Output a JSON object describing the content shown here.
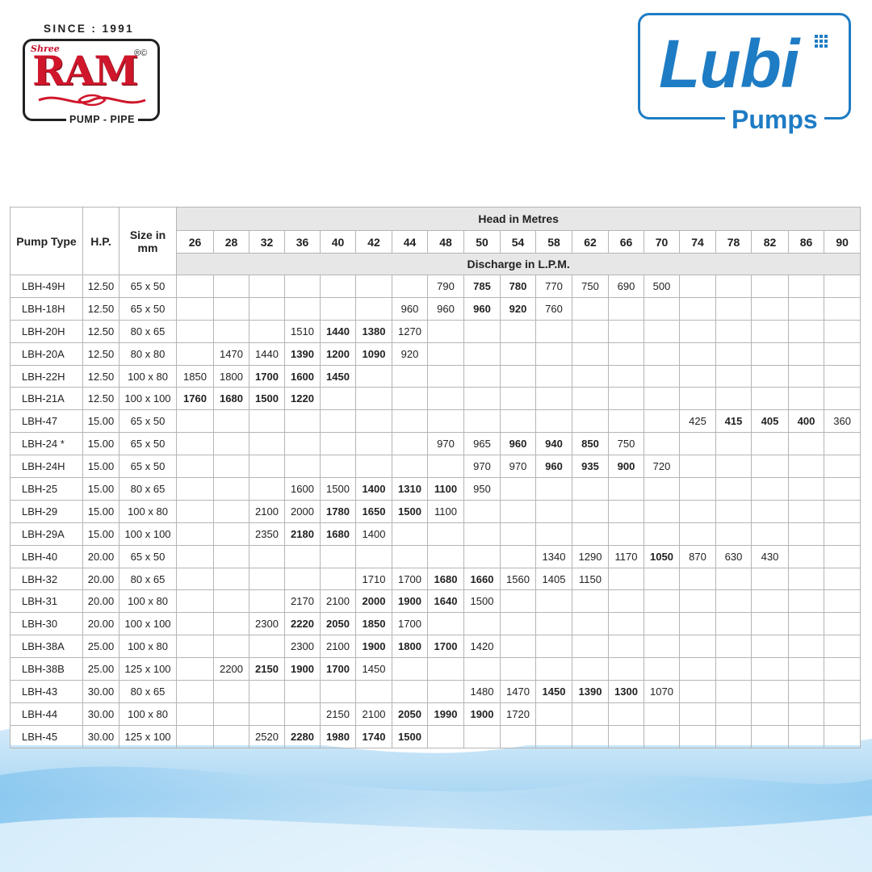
{
  "brand_left": {
    "since": "SINCE : 1991",
    "prefix": "Shree",
    "name": "RAM",
    "reg_mark": "®©",
    "tagline": "PUMP - PIPE"
  },
  "brand_right": {
    "name": "Lubi",
    "subtitle": "Pumps",
    "accent_color": "#1e7cc4"
  },
  "table": {
    "col_pump_type": "Pump Type",
    "col_hp": "H.P.",
    "col_size": "Size in mm",
    "head_group": "Head in Metres",
    "discharge_group": "Discharge in L.P.M.",
    "heads": [
      "26",
      "28",
      "32",
      "36",
      "40",
      "42",
      "44",
      "48",
      "50",
      "54",
      "58",
      "62",
      "66",
      "70",
      "74",
      "78",
      "82",
      "86",
      "90"
    ],
    "rows": [
      {
        "type": "LBH-49H",
        "hp": "12.50",
        "size": "65 x 50",
        "values": [
          "",
          "",
          "",
          "",
          "",
          "",
          "",
          "790",
          "785",
          "780",
          "770",
          "750",
          "690",
          "500",
          "",
          "",
          "",
          "",
          ""
        ],
        "bold": [
          8,
          9
        ]
      },
      {
        "type": "LBH-18H",
        "hp": "12.50",
        "size": "65 x 50",
        "values": [
          "",
          "",
          "",
          "",
          "",
          "",
          "960",
          "960",
          "960",
          "920",
          "760",
          "",
          "",
          "",
          "",
          "",
          "",
          "",
          ""
        ],
        "bold": [
          8,
          9
        ]
      },
      {
        "type": "LBH-20H",
        "hp": "12.50",
        "size": "80 x 65",
        "values": [
          "",
          "",
          "",
          "1510",
          "1440",
          "1380",
          "1270",
          "",
          "",
          "",
          "",
          "",
          "",
          "",
          "",
          "",
          "",
          "",
          ""
        ],
        "bold": [
          4,
          5
        ]
      },
      {
        "type": "LBH-20A",
        "hp": "12.50",
        "size": "80 x 80",
        "values": [
          "",
          "1470",
          "1440",
          "1390",
          "1200",
          "1090",
          "920",
          "",
          "",
          "",
          "",
          "",
          "",
          "",
          "",
          "",
          "",
          "",
          ""
        ],
        "bold": [
          3,
          4,
          5
        ]
      },
      {
        "type": "LBH-22H",
        "hp": "12.50",
        "size": "100 x 80",
        "values": [
          "1850",
          "1800",
          "1700",
          "1600",
          "1450",
          "",
          "",
          "",
          "",
          "",
          "",
          "",
          "",
          "",
          "",
          "",
          "",
          "",
          ""
        ],
        "bold": [
          2,
          3,
          4
        ]
      },
      {
        "type": "LBH-21A",
        "hp": "12.50",
        "size": "100 x 100",
        "values": [
          "1760",
          "1680",
          "1500",
          "1220",
          "",
          "",
          "",
          "",
          "",
          "",
          "",
          "",
          "",
          "",
          "",
          "",
          "",
          "",
          ""
        ],
        "bold": [
          0,
          1,
          2,
          3
        ]
      },
      {
        "type": "LBH-47",
        "hp": "15.00",
        "size": "65 x 50",
        "values": [
          "",
          "",
          "",
          "",
          "",
          "",
          "",
          "",
          "",
          "",
          "",
          "",
          "",
          "",
          "425",
          "415",
          "405",
          "400",
          "360"
        ],
        "bold": [
          15,
          16,
          17
        ]
      },
      {
        "type": "LBH-24 *",
        "hp": "15.00",
        "size": "65 x 50",
        "values": [
          "",
          "",
          "",
          "",
          "",
          "",
          "",
          "970",
          "965",
          "960",
          "940",
          "850",
          "750",
          "",
          "",
          "",
          "",
          "",
          ""
        ],
        "bold": [
          9,
          10,
          11
        ]
      },
      {
        "type": "LBH-24H",
        "hp": "15.00",
        "size": "65 x 50",
        "values": [
          "",
          "",
          "",
          "",
          "",
          "",
          "",
          "",
          "970",
          "970",
          "960",
          "935",
          "900",
          "720",
          "",
          "",
          "",
          "",
          ""
        ],
        "bold": [
          10,
          11,
          12
        ]
      },
      {
        "type": "LBH-25",
        "hp": "15.00",
        "size": "80 x 65",
        "values": [
          "",
          "",
          "",
          "1600",
          "1500",
          "1400",
          "1310",
          "1100",
          "950",
          "",
          "",
          "",
          "",
          "",
          "",
          "",
          "",
          "",
          ""
        ],
        "bold": [
          5,
          6,
          7
        ]
      },
      {
        "type": "LBH-29",
        "hp": "15.00",
        "size": "100 x 80",
        "values": [
          "",
          "",
          "2100",
          "2000",
          "1780",
          "1650",
          "1500",
          "1100",
          "",
          "",
          "",
          "",
          "",
          "",
          "",
          "",
          "",
          "",
          ""
        ],
        "bold": [
          4,
          5,
          6
        ]
      },
      {
        "type": "LBH-29A",
        "hp": "15.00",
        "size": "100 x 100",
        "values": [
          "",
          "",
          "2350",
          "2180",
          "1680",
          "1400",
          "",
          "",
          "",
          "",
          "",
          "",
          "",
          "",
          "",
          "",
          "",
          "",
          ""
        ],
        "bold": [
          3,
          4
        ]
      },
      {
        "type": "LBH-40",
        "hp": "20.00",
        "size": "65 x 50",
        "values": [
          "",
          "",
          "",
          "",
          "",
          "",
          "",
          "",
          "",
          "",
          "1340",
          "1290",
          "1170",
          "1050",
          "870",
          "630",
          "430",
          "",
          ""
        ],
        "bold": [
          13
        ]
      },
      {
        "type": "LBH-32",
        "hp": "20.00",
        "size": "80 x 65",
        "values": [
          "",
          "",
          "",
          "",
          "",
          "1710",
          "1700",
          "1680",
          "1660",
          "1560",
          "1405",
          "1150",
          "",
          "",
          "",
          "",
          "",
          "",
          ""
        ],
        "bold": [
          7,
          8
        ]
      },
      {
        "type": "LBH-31",
        "hp": "20.00",
        "size": "100 x 80",
        "values": [
          "",
          "",
          "",
          "2170",
          "2100",
          "2000",
          "1900",
          "1640",
          "1500",
          "",
          "",
          "",
          "",
          "",
          "",
          "",
          "",
          "",
          ""
        ],
        "bold": [
          5,
          6,
          7
        ]
      },
      {
        "type": "LBH-30",
        "hp": "20.00",
        "size": "100 x 100",
        "values": [
          "",
          "",
          "2300",
          "2220",
          "2050",
          "1850",
          "1700",
          "",
          "",
          "",
          "",
          "",
          "",
          "",
          "",
          "",
          "",
          "",
          ""
        ],
        "bold": [
          3,
          4,
          5
        ]
      },
      {
        "type": "LBH-38A",
        "hp": "25.00",
        "size": "100 x 80",
        "values": [
          "",
          "",
          "",
          "2300",
          "2100",
          "1900",
          "1800",
          "1700",
          "1420",
          "",
          "",
          "",
          "",
          "",
          "",
          "",
          "",
          "",
          ""
        ],
        "bold": [
          5,
          6,
          7
        ]
      },
      {
        "type": "LBH-38B",
        "hp": "25.00",
        "size": "125 x 100",
        "values": [
          "",
          "2200",
          "2150",
          "1900",
          "1700",
          "1450",
          "",
          "",
          "",
          "",
          "",
          "",
          "",
          "",
          "",
          "",
          "",
          "",
          ""
        ],
        "bold": [
          2,
          3,
          4
        ]
      },
      {
        "type": "LBH-43",
        "hp": "30.00",
        "size": "80 x 65",
        "values": [
          "",
          "",
          "",
          "",
          "",
          "",
          "",
          "",
          "1480",
          "1470",
          "1450",
          "1390",
          "1300",
          "1070",
          "",
          "",
          "",
          "",
          ""
        ],
        "bold": [
          10,
          11,
          12
        ]
      },
      {
        "type": "LBH-44",
        "hp": "30.00",
        "size": "100 x 80",
        "values": [
          "",
          "",
          "",
          "",
          "2150",
          "2100",
          "2050",
          "1990",
          "1900",
          "1720",
          "",
          "",
          "",
          "",
          "",
          "",
          "",
          "",
          ""
        ],
        "bold": [
          6,
          7,
          8
        ]
      },
      {
        "type": "LBH-45",
        "hp": "30.00",
        "size": "125 x 100",
        "values": [
          "",
          "",
          "2520",
          "2280",
          "1980",
          "1740",
          "1500",
          "",
          "",
          "",
          "",
          "",
          "",
          "",
          "",
          "",
          "",
          "",
          ""
        ],
        "bold": [
          3,
          4,
          5,
          6
        ]
      }
    ]
  }
}
